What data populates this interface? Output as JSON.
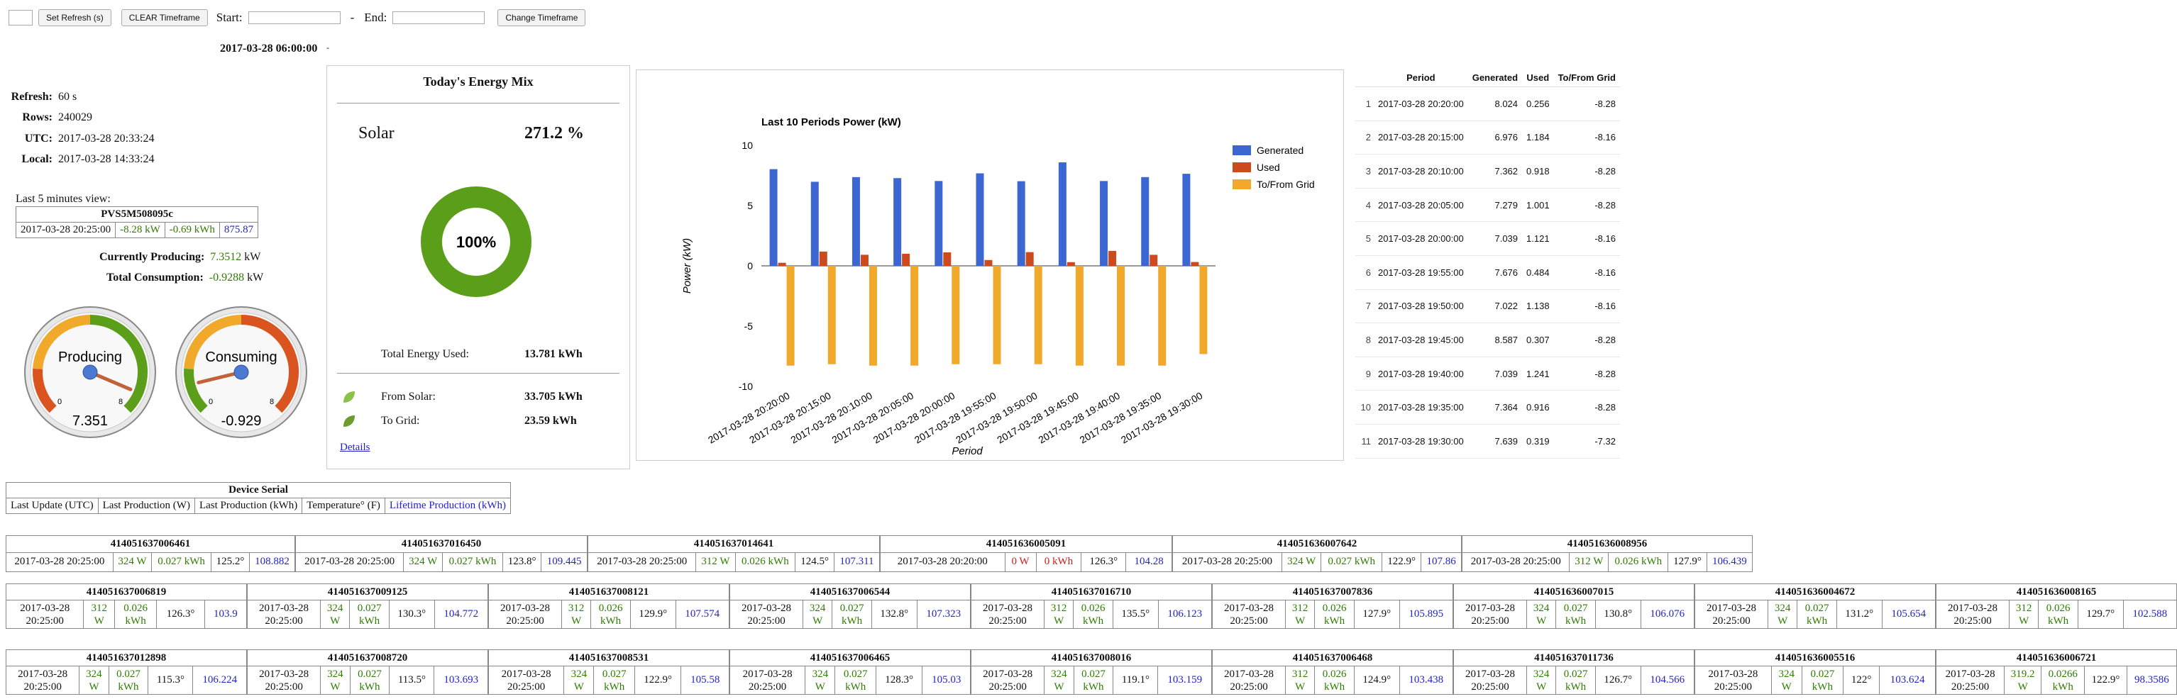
{
  "toolbar": {
    "set_refresh_label": "Set Refresh (s)",
    "clear_timeframe_label": "CLEAR Timeframe",
    "start_label": "Start:",
    "dash": "-",
    "end_label": "End:",
    "change_timeframe_label": "Change Timeframe"
  },
  "header_date": "2017-03-28 06:00:00",
  "info": {
    "refresh_label": "Refresh:",
    "refresh_value": "60 s",
    "rows_label": "Rows:",
    "rows_value": "240029",
    "utc_label": "UTC:",
    "utc_value": "2017-03-28 20:33:24",
    "local_label": "Local:",
    "local_value": "2017-03-28 14:33:24"
  },
  "last5": {
    "caption": "Last 5 minutes view:",
    "device": "PVS5M508095c",
    "time": "2017-03-28 20:25:00",
    "kw": "-8.28 kW",
    "kwh": "-0.69 kWh",
    "value": "875.87"
  },
  "currently_producing": {
    "label": "Currently Producing:",
    "value": "7.3512",
    "unit": "kW"
  },
  "total_consumption": {
    "label": "Total Consumption:",
    "value": "-0.9288",
    "unit": "kW"
  },
  "gauges": {
    "producing": {
      "label": "Producing",
      "value": "7.351",
      "min": "0",
      "max": "8",
      "level": 7.351
    },
    "consuming": {
      "label": "Consuming",
      "value": "-0.929",
      "min": "0",
      "max": "8",
      "level": 0.929
    }
  },
  "energy_mix": {
    "title": "Today's Energy Mix",
    "source": "Solar",
    "percent": "271.2 %",
    "donut_label": "100%",
    "total_used_label": "Total Energy Used:",
    "total_used_value": "13.781 kWh",
    "from_solar_label": "From Solar:",
    "from_solar_value": "33.705 kWh",
    "to_grid_label": "To Grid:",
    "to_grid_value": "23.59 kWh",
    "details_link": "Details",
    "colors": {
      "solar": "#5a9e1a",
      "solar_light": "#8bc34a",
      "grid": "#6e9a2e"
    }
  },
  "chart_data": {
    "type": "bar",
    "title": "Last 10 Periods Power (kW)",
    "xlabel": "Period",
    "ylabel": "Power (kW)",
    "ylim": [
      -10,
      10
    ],
    "yticks": [
      "10",
      "5",
      "0",
      "-5",
      "-10"
    ],
    "categories": [
      "2017-03-28 20:20:00",
      "2017-03-28 20:15:00",
      "2017-03-28 20:10:00",
      "2017-03-28 20:05:00",
      "2017-03-28 20:00:00",
      "2017-03-28 19:55:00",
      "2017-03-28 19:50:00",
      "2017-03-28 19:45:00",
      "2017-03-28 19:40:00",
      "2017-03-28 19:35:00",
      "2017-03-28 19:30:00"
    ],
    "series": [
      {
        "name": "Generated",
        "color": "#3c66d1",
        "values": [
          8.024,
          6.976,
          7.362,
          7.279,
          7.039,
          7.676,
          7.022,
          8.587,
          7.039,
          7.364,
          7.639
        ]
      },
      {
        "name": "Used",
        "color": "#cc4a1c",
        "values": [
          0.256,
          1.184,
          0.918,
          1.001,
          1.121,
          0.484,
          1.138,
          0.307,
          1.241,
          0.916,
          0.319
        ]
      },
      {
        "name": "To/From Grid",
        "color": "#f0a92b",
        "values": [
          -8.28,
          -8.16,
          -8.28,
          -8.28,
          -8.16,
          -8.16,
          -8.16,
          -8.28,
          -8.28,
          -8.28,
          -7.32
        ]
      }
    ],
    "legend": "right",
    "grid": false
  },
  "period_table": {
    "headers": [
      "Period",
      "Generated",
      "Used",
      "To/From Grid"
    ],
    "rows": [
      [
        "1",
        "2017-03-28 20:20:00",
        "8.024",
        "0.256",
        "-8.28"
      ],
      [
        "2",
        "2017-03-28 20:15:00",
        "6.976",
        "1.184",
        "-8.16"
      ],
      [
        "3",
        "2017-03-28 20:10:00",
        "7.362",
        "0.918",
        "-8.28"
      ],
      [
        "4",
        "2017-03-28 20:05:00",
        "7.279",
        "1.001",
        "-8.28"
      ],
      [
        "5",
        "2017-03-28 20:00:00",
        "7.039",
        "1.121",
        "-8.16"
      ],
      [
        "6",
        "2017-03-28 19:55:00",
        "7.676",
        "0.484",
        "-8.16"
      ],
      [
        "7",
        "2017-03-28 19:50:00",
        "7.022",
        "1.138",
        "-8.16"
      ],
      [
        "8",
        "2017-03-28 19:45:00",
        "8.587",
        "0.307",
        "-8.28"
      ],
      [
        "9",
        "2017-03-28 19:40:00",
        "7.039",
        "1.241",
        "-8.28"
      ],
      [
        "10",
        "2017-03-28 19:35:00",
        "7.364",
        "0.916",
        "-8.28"
      ],
      [
        "11",
        "2017-03-28 19:30:00",
        "7.639",
        "0.319",
        "-7.32"
      ]
    ]
  },
  "device_legend": {
    "title": "Device Serial",
    "cols": [
      "Last Update (UTC)",
      "Last Production (W)",
      "Last Production (kWh)",
      "Temperature° (F)",
      "Lifetime Production (kWh)"
    ]
  },
  "device_rows": [
    [
      {
        "serial": "414051637006461",
        "time": "2017-03-28 20:25:00",
        "w": "324 W",
        "kwh": "0.027 kWh",
        "temp": "125.2°",
        "life": "108.882"
      },
      {
        "serial": "414051637016450",
        "time": "2017-03-28 20:25:00",
        "w": "324 W",
        "kwh": "0.027 kWh",
        "temp": "123.8°",
        "life": "109.445"
      },
      {
        "serial": "414051637014641",
        "time": "2017-03-28 20:25:00",
        "w": "312 W",
        "kwh": "0.026 kWh",
        "temp": "124.5°",
        "life": "107.311"
      },
      {
        "serial": "414051636005091",
        "time": "2017-03-28 20:20:00",
        "w": "0 W",
        "kwh": "0 kWh",
        "temp": "126.3°",
        "life": "104.28",
        "zero": true
      },
      {
        "serial": "414051636007642",
        "time": "2017-03-28 20:25:00",
        "w": "324 W",
        "kwh": "0.027 kWh",
        "temp": "122.9°",
        "life": "107.86"
      },
      {
        "serial": "414051636008956",
        "time": "2017-03-28 20:25:00",
        "w": "312 W",
        "kwh": "0.026 kWh",
        "temp": "127.9°",
        "life": "106.439"
      }
    ],
    [
      {
        "serial": "414051637006819",
        "d1": "2017-03-28",
        "d2": "20:25:00",
        "w1": "312",
        "w2": "W",
        "k1": "0.026",
        "k2": "kWh",
        "temp": "126.3°",
        "life": "103.9"
      },
      {
        "serial": "414051637009125",
        "d1": "2017-03-28",
        "d2": "20:25:00",
        "w1": "324",
        "w2": "W",
        "k1": "0.027",
        "k2": "kWh",
        "temp": "130.3°",
        "life": "104.772"
      },
      {
        "serial": "414051637008121",
        "d1": "2017-03-28",
        "d2": "20:25:00",
        "w1": "312",
        "w2": "W",
        "k1": "0.026",
        "k2": "kWh",
        "temp": "129.9°",
        "life": "107.574"
      },
      {
        "serial": "414051637006544",
        "d1": "2017-03-28",
        "d2": "20:25:00",
        "w1": "324",
        "w2": "W",
        "k1": "0.027",
        "k2": "kWh",
        "temp": "132.8°",
        "life": "107.323"
      },
      {
        "serial": "414051637016710",
        "d1": "2017-03-28",
        "d2": "20:25:00",
        "w1": "312",
        "w2": "W",
        "k1": "0.026",
        "k2": "kWh",
        "temp": "135.5°",
        "life": "106.123"
      },
      {
        "serial": "414051637007836",
        "d1": "2017-03-28",
        "d2": "20:25:00",
        "w1": "312",
        "w2": "W",
        "k1": "0.026",
        "k2": "kWh",
        "temp": "127.9°",
        "life": "105.895"
      },
      {
        "serial": "414051636007015",
        "d1": "2017-03-28",
        "d2": "20:25:00",
        "w1": "324",
        "w2": "W",
        "k1": "0.027",
        "k2": "kWh",
        "temp": "130.8°",
        "life": "106.076"
      },
      {
        "serial": "414051636004672",
        "d1": "2017-03-28",
        "d2": "20:25:00",
        "w1": "324",
        "w2": "W",
        "k1": "0.027",
        "k2": "kWh",
        "temp": "131.2°",
        "life": "105.654"
      },
      {
        "serial": "414051636008165",
        "d1": "2017-03-28",
        "d2": "20:25:00",
        "w1": "312",
        "w2": "W",
        "k1": "0.026",
        "k2": "kWh",
        "temp": "129.7°",
        "life": "102.588"
      }
    ],
    [
      {
        "serial": "414051637012898",
        "d1": "2017-03-28",
        "d2": "20:25:00",
        "w1": "324",
        "w2": "W",
        "k1": "0.027",
        "k2": "kWh",
        "temp": "115.3°",
        "life": "106.224"
      },
      {
        "serial": "414051637008720",
        "d1": "2017-03-28",
        "d2": "20:25:00",
        "w1": "324",
        "w2": "W",
        "k1": "0.027",
        "k2": "kWh",
        "temp": "113.5°",
        "life": "103.693"
      },
      {
        "serial": "414051637008531",
        "d1": "2017-03-28",
        "d2": "20:25:00",
        "w1": "324",
        "w2": "W",
        "k1": "0.027",
        "k2": "kWh",
        "temp": "122.9°",
        "life": "105.58"
      },
      {
        "serial": "414051637006465",
        "d1": "2017-03-28",
        "d2": "20:25:00",
        "w1": "324",
        "w2": "W",
        "k1": "0.027",
        "k2": "kWh",
        "temp": "128.3°",
        "life": "105.03"
      },
      {
        "serial": "414051637008016",
        "d1": "2017-03-28",
        "d2": "20:25:00",
        "w1": "324",
        "w2": "W",
        "k1": "0.027",
        "k2": "kWh",
        "temp": "119.1°",
        "life": "103.159"
      },
      {
        "serial": "414051637006468",
        "d1": "2017-03-28",
        "d2": "20:25:00",
        "w1": "312",
        "w2": "W",
        "k1": "0.026",
        "k2": "kWh",
        "temp": "124.9°",
        "life": "103.438"
      },
      {
        "serial": "414051637011736",
        "d1": "2017-03-28",
        "d2": "20:25:00",
        "w1": "324",
        "w2": "W",
        "k1": "0.027",
        "k2": "kWh",
        "temp": "126.7°",
        "life": "104.566"
      },
      {
        "serial": "414051636005516",
        "d1": "2017-03-28",
        "d2": "20:25:00",
        "w1": "324",
        "w2": "W",
        "k1": "0.027",
        "k2": "kWh",
        "temp": "122°",
        "life": "103.624"
      },
      {
        "serial": "414051636006721",
        "d1": "2017-03-28",
        "d2": "20:25:00",
        "w1": "319.2",
        "w2": "W",
        "k1": "0.0266",
        "k2": "kWh",
        "temp": "122.9°",
        "life": "98.3586"
      }
    ]
  ]
}
